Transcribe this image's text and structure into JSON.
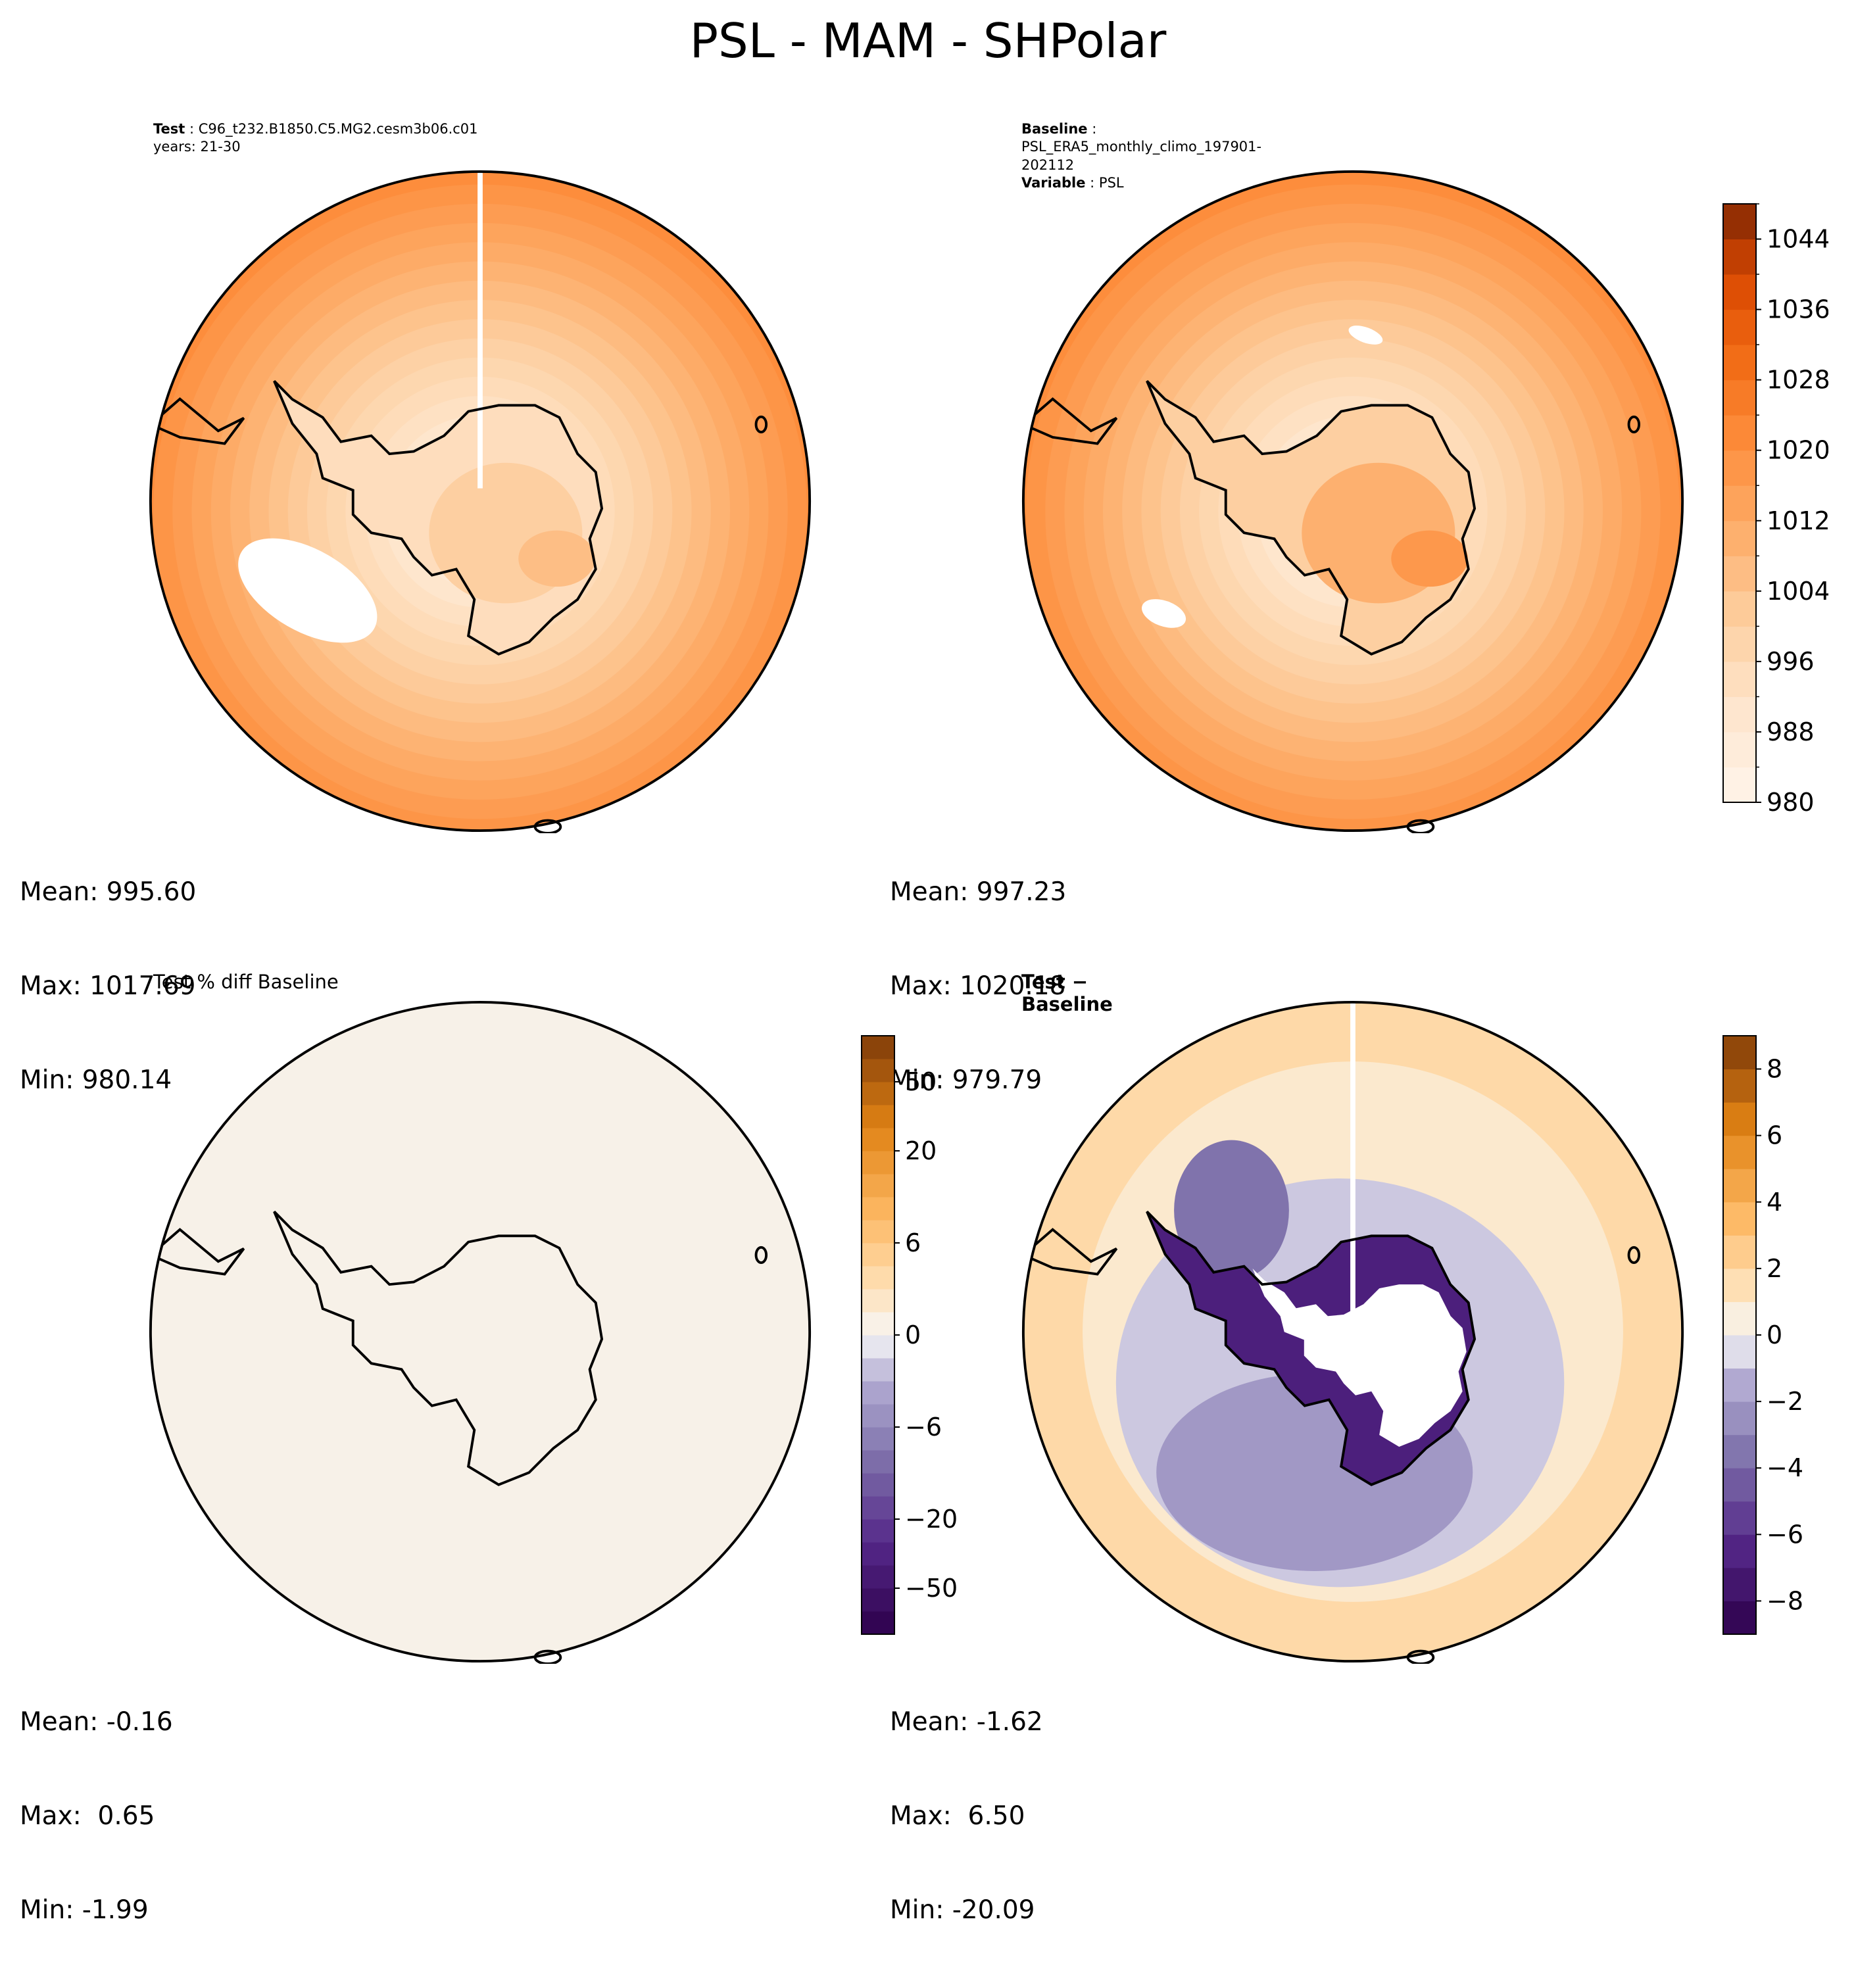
{
  "figure": {
    "suptitle": "PSL - MAM - SHPolar"
  },
  "panels": [
    {
      "id": "test",
      "meta": [
        {
          "key": "Test",
          "value": "C96_t232.B1850.C5.MG2.cesm3b06.c01"
        },
        {
          "key": "",
          "value": "years: 21-30"
        }
      ],
      "title": "",
      "title_bold": false,
      "stats": {
        "mean": "Mean: 995.60",
        "max": "Max: 1017.69",
        "min": "Min: 980.14"
      },
      "field": "test",
      "gap_line": true,
      "white_regions": [
        "ross-sea-low-test"
      ]
    },
    {
      "id": "baseline",
      "meta": [
        {
          "key": "Baseline",
          "value": "PSL_ERA5_monthly_climo_197901-202112"
        },
        {
          "key": "Variable",
          "value": "PSL"
        }
      ],
      "title": "",
      "title_bold": false,
      "stats": {
        "mean": "Mean: 997.23",
        "max": "Max: 1020.18",
        "min": "Min: 979.79"
      },
      "field": "baseline",
      "gap_line": false,
      "white_regions": [
        "ross-sea-low-baseline",
        "small-low-north"
      ]
    },
    {
      "id": "pctdiff",
      "meta": [],
      "title": "Test % diff Baseline",
      "title_bold": false,
      "stats": {
        "mean": "Mean: -0.16",
        "max": "Max:  0.65",
        "min": "Min: -1.99"
      },
      "field": "pctdiff",
      "gap_line": false,
      "white_regions": []
    },
    {
      "id": "diff",
      "meta": [],
      "title": "Test − Baseline",
      "title_bold": true,
      "stats": {
        "mean": "Mean: -1.62",
        "max": "Max:  6.50",
        "min": "Min: -20.09"
      },
      "field": "diff",
      "gap_line": true,
      "white_regions": [
        "antarctic-interior-mask"
      ]
    }
  ],
  "colorbars": [
    {
      "id": "abs",
      "cmap": "Oranges",
      "ticks": [
        "980",
        "988",
        "996",
        "1004",
        "1012",
        "1020",
        "1028",
        "1036",
        "1044"
      ],
      "levels": [
        980,
        984,
        988,
        992,
        996,
        1000,
        1004,
        1008,
        1012,
        1016,
        1020,
        1024,
        1028,
        1032,
        1036,
        1040,
        1044,
        1048
      ],
      "minor_ticks": true
    },
    {
      "id": "pct",
      "cmap": "PuOr_r",
      "ticks": [
        "−50",
        "−20",
        "−6",
        "0",
        "6",
        "20",
        "50"
      ],
      "levels": [
        "-100",
        "-75",
        "-50",
        "-40",
        "-30",
        "-20",
        "-15",
        "-10",
        "-8",
        "-6",
        "-4",
        "-2",
        "-1",
        "0",
        "1",
        "2",
        "4",
        "6",
        "8",
        "10",
        "15",
        "20",
        "30",
        "40",
        "50",
        "75",
        "100"
      ]
    },
    {
      "id": "diff",
      "cmap": "PuOr_r",
      "ticks": [
        "−8",
        "−6",
        "−4",
        "−2",
        "0",
        "2",
        "4",
        "6",
        "8"
      ],
      "levels": [
        -9,
        -8,
        -7,
        -6,
        -5,
        -4,
        -3,
        -2,
        -1,
        0,
        1,
        2,
        3,
        4,
        5,
        6,
        7,
        8,
        9
      ]
    }
  ],
  "chart_data": [
    {
      "type": "heatmap",
      "projection": "south-polar-stereographic",
      "title": "",
      "variable": "PSL",
      "season": "MAM",
      "region": "SHPolar",
      "colorbar_range": [
        980,
        1048
      ],
      "summary": {
        "mean": 995.6,
        "max": 1017.69,
        "min": 980.14
      }
    },
    {
      "type": "heatmap",
      "projection": "south-polar-stereographic",
      "title": "",
      "variable": "PSL",
      "colorbar_range": [
        980,
        1048
      ],
      "colorbar_ticks": [
        980,
        988,
        996,
        1004,
        1012,
        1020,
        1028,
        1036,
        1044
      ],
      "summary": {
        "mean": 997.23,
        "max": 1020.18,
        "min": 979.79
      }
    },
    {
      "type": "heatmap",
      "projection": "south-polar-stereographic",
      "title": "Test % diff Baseline",
      "colorbar_ticks": [
        -50,
        -20,
        -6,
        0,
        6,
        20,
        50
      ],
      "summary": {
        "mean": -0.16,
        "max": 0.65,
        "min": -1.99
      }
    },
    {
      "type": "heatmap",
      "projection": "south-polar-stereographic",
      "title": "Test − Baseline",
      "colorbar_range": [
        -9,
        9
      ],
      "colorbar_ticks": [
        -8,
        -6,
        -4,
        -2,
        0,
        2,
        4,
        6,
        8
      ],
      "summary": {
        "mean": -1.62,
        "max": 6.5,
        "min": -20.09
      }
    }
  ]
}
